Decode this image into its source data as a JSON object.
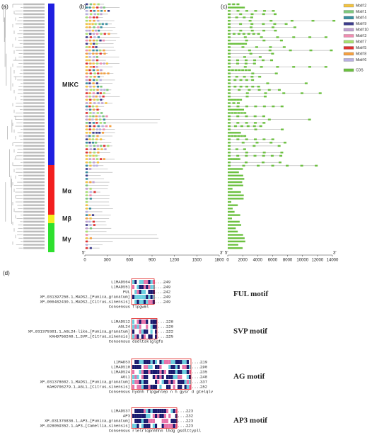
{
  "panels": {
    "a": "(a)",
    "b": "(b)",
    "c": "(c)",
    "d": "(d)"
  },
  "groups": [
    {
      "name": "MIKC",
      "color": "#1f1fe0"
    },
    {
      "name": "Mα",
      "color": "#f21f1f"
    },
    {
      "name": "Mβ",
      "color": "#f2ef1f"
    },
    {
      "name": "Mγ",
      "color": "#2ee02e"
    }
  ],
  "panel_b": {
    "axis_start": "5'",
    "axis_end": "3'",
    "ticks": [
      0,
      300,
      600,
      900,
      1200,
      1500,
      1800
    ]
  },
  "panel_c": {
    "axis_start": "5'",
    "axis_end": "3'",
    "ticks": [
      0,
      2000,
      4000,
      6000,
      8000,
      10000,
      12000,
      14000
    ]
  },
  "legend": [
    {
      "label": "Motif 2",
      "color": "#f3c340"
    },
    {
      "label": "Motif 1",
      "color": "#7cc87c"
    },
    {
      "label": "Motif 4",
      "color": "#3a8fa0"
    },
    {
      "label": "Motif 9",
      "color": "#3c3c8c"
    },
    {
      "label": "Motif 10",
      "color": "#c0a0d0"
    },
    {
      "label": "Motif 3",
      "color": "#f08cb0"
    },
    {
      "label": "Motif 7",
      "color": "#a8e070"
    },
    {
      "label": "Motif 5",
      "color": "#e03030"
    },
    {
      "label": "Motif 8",
      "color": "#f5a040"
    },
    {
      "label": "Motif 6",
      "color": "#b8b0e0"
    },
    {
      "label": "CDS",
      "color": "#6cc040"
    }
  ],
  "alignments": [
    {
      "motif": "FUL motif",
      "consensus_label": "Consensus",
      "consensus": "flpgwml",
      "rows": [
        {
          "name": "LiMADS64",
          "end": 249
        },
        {
          "name": "LiMADS51",
          "end": 249
        },
        {
          "name": "FUL",
          "end": 242
        },
        {
          "name": "XP_031397258.1_MADS2_[Punica_granatum]",
          "end": 249
        },
        {
          "name": "XP_006482430.1_MADS2_[Citrus_sinensis]",
          "end": 249
        }
      ]
    },
    {
      "motif": "SVP motif",
      "consensus_label": "Consensus",
      "consensus": "dsdltsklglgfs",
      "rows": [
        {
          "name": "LiMADS12",
          "end": 228
        },
        {
          "name": "AGL24",
          "end": 220
        },
        {
          "name": "XP_031375301.1_AGL24-like_[Punica_granatum]",
          "end": 222
        },
        {
          "name": "KAH9756240.1_SVP_[Citrus_sinensis]",
          "end": 225
        }
      ]
    },
    {
      "motif": "AG motif",
      "consensus_label": "Consensus",
      "consensus": "hydnh flpgwhlep n h gysr d gtelqlv",
      "rows": [
        {
          "name": "LiMADS3",
          "end": 219
        },
        {
          "name": "LiMADS10",
          "end": 290
        },
        {
          "name": "LiMADS24",
          "end": 235
        },
        {
          "name": "AGL1",
          "end": 248
        },
        {
          "name": "XP_031378602.1_MADS1_[Punica_granatum]",
          "end": 337
        },
        {
          "name": "KAH9706279.1_AGL1_[Citrus_sinensis]",
          "end": 252
        }
      ]
    },
    {
      "motif": "AP3 motif",
      "consensus_label": "Consensus",
      "consensus": "rlelrlqpnhhhn lhdg gsdlttypll",
      "rows": [
        {
          "name": "LiMADS37",
          "end": 223
        },
        {
          "name": "AP3",
          "end": 232
        },
        {
          "name": "XP_031376836.1_AP3_[Punica_granatum]",
          "end": 223
        },
        {
          "name": "XP_028059352.1_AP3_[Camellia_sinensis]",
          "end": 223
        }
      ]
    }
  ]
}
